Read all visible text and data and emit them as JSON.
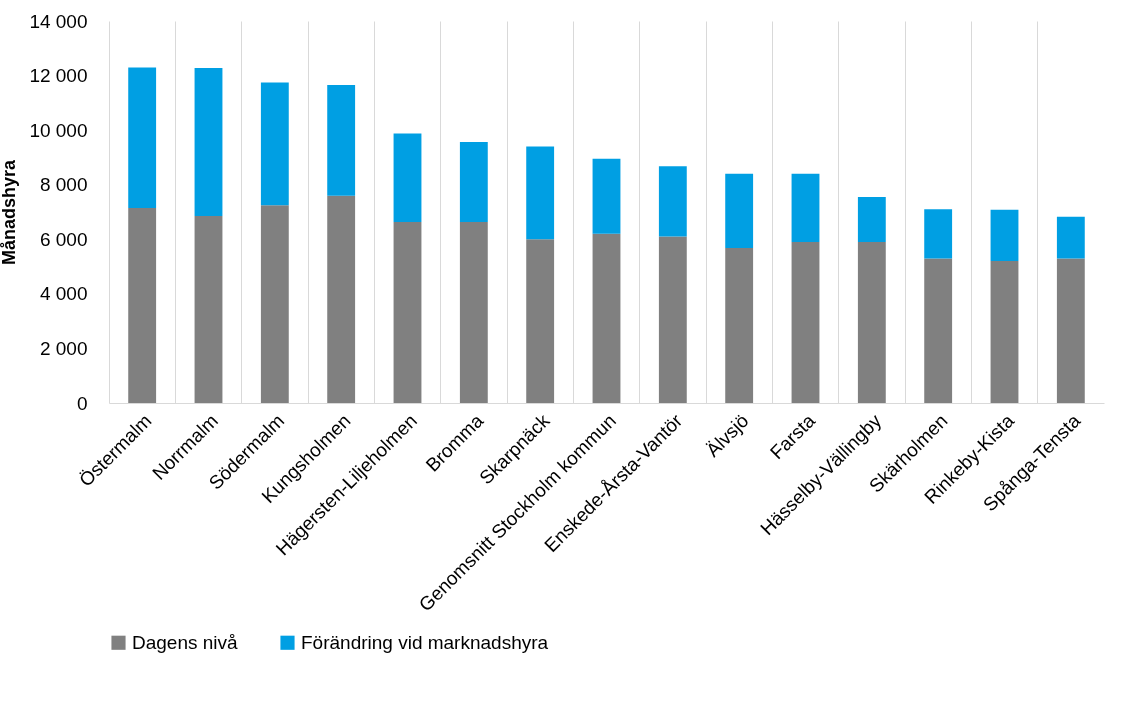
{
  "chart_data": {
    "type": "bar",
    "stacked": true,
    "ylabel": "Månadshyra",
    "categories": [
      "Östermalm",
      "Norrmalm",
      "Södermalm",
      "Kungsholmen",
      "Hägersten-Liljeholmen",
      "Bromma",
      "Skarpnäck",
      "Genomsnitt Stockholm kommun",
      "Enskede-Årsta-Vantör",
      "Älvsjö",
      "Farsta",
      "Hässelby-Vällingby",
      "Skärholmen",
      "Rinkeby-Kista",
      "Spånga-Tensta"
    ],
    "series": [
      {
        "name": "Dagens nivå",
        "color": "#808080",
        "values": [
          7150,
          6850,
          7250,
          7600,
          6630,
          6630,
          6000,
          6200,
          6100,
          5680,
          5900,
          5900,
          5300,
          5200,
          5300
        ]
      },
      {
        "name": "Förändring vid marknadshyra",
        "color": "#009fe3",
        "values": [
          5150,
          5430,
          4500,
          4050,
          3250,
          2940,
          3400,
          2750,
          2580,
          2720,
          2500,
          1650,
          1800,
          1880,
          1530
        ]
      }
    ],
    "ylim": [
      0,
      14000
    ],
    "yticks": [
      0,
      {
        "value": 2000,
        "label": "2 000"
      },
      {
        "value": 4000,
        "label": "4 000"
      },
      {
        "value": 6000,
        "label": "6 000"
      },
      {
        "value": 8000,
        "label": "8 000"
      },
      {
        "value": 10000,
        "label": "10 000"
      },
      {
        "value": 12000,
        "label": "12 000"
      },
      {
        "value": 14000,
        "label": "14 000"
      }
    ],
    "grid": "x",
    "legend": "bottom"
  }
}
